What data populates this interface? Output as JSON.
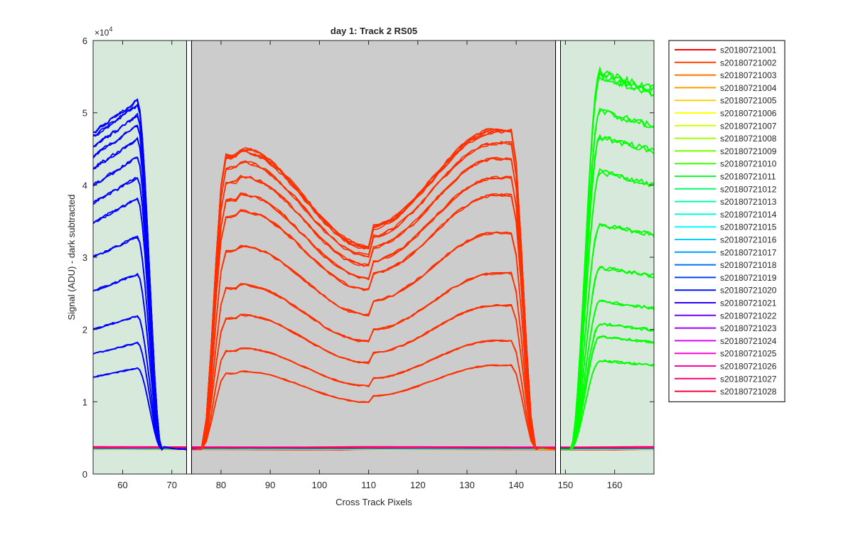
{
  "chart_data": {
    "type": "line",
    "title": "day 1: Track 2  RS05",
    "xlabel": "Cross Track Pixels",
    "ylabel": "Signal (ADU) - dark subtracted",
    "y_exponent_label": "×10",
    "y_exponent_power": "4",
    "xlim": [
      54,
      168
    ],
    "ylim": [
      0,
      60000
    ],
    "x_ticks": [
      60,
      70,
      80,
      90,
      100,
      110,
      120,
      130,
      140,
      150,
      160
    ],
    "x_tick_labels": [
      "60",
      "70",
      "80",
      "90",
      "100",
      "110",
      "120",
      "130",
      "140",
      "150",
      "160"
    ],
    "y_ticks": [
      0,
      10000,
      20000,
      30000,
      40000,
      50000,
      60000
    ],
    "y_tick_labels": [
      "0",
      "1",
      "2",
      "3",
      "4",
      "5",
      "6"
    ],
    "grid": false,
    "legend_position": "outside-right",
    "regions": [
      {
        "name": "left-edge-region",
        "x": [
          54,
          73
        ],
        "color": "#d6e9da"
      },
      {
        "name": "center-region",
        "x": [
          74,
          148
        ],
        "color": "#cccccc"
      },
      {
        "name": "right-edge-region",
        "x": [
          149,
          168
        ],
        "color": "#d6e9da"
      }
    ],
    "divider_x": [
      73,
      74,
      148,
      149
    ],
    "baseline": 3400,
    "levels": {
      "left": [
        47200,
        46700,
        45300,
        44000,
        42300,
        40000,
        37500,
        34800,
        30000,
        25300,
        20000,
        16600,
        13400
      ],
      "center": [
        45000,
        44700,
        43200,
        41200,
        38700,
        36400,
        31500,
        26200,
        22000,
        17400,
        14200
      ],
      "right": [
        53500,
        52900,
        48300,
        44900,
        40200,
        33200,
        27500,
        23000,
        20000,
        18300,
        15100
      ]
    },
    "series": [
      {
        "name": "s20180721001",
        "color": "#ff0000"
      },
      {
        "name": "s20180721002",
        "color": "#ff4000"
      },
      {
        "name": "s20180721003",
        "color": "#ff7000"
      },
      {
        "name": "s20180721004",
        "color": "#ffa000"
      },
      {
        "name": "s20180721005",
        "color": "#ffd000"
      },
      {
        "name": "s20180721006",
        "color": "#ffff00"
      },
      {
        "name": "s20180721007",
        "color": "#d0ff00"
      },
      {
        "name": "s20180721008",
        "color": "#a0ff00"
      },
      {
        "name": "s20180721009",
        "color": "#70ff00"
      },
      {
        "name": "s20180721010",
        "color": "#40ff00"
      },
      {
        "name": "s20180721011",
        "color": "#10ff30"
      },
      {
        "name": "s20180721012",
        "color": "#00ff70"
      },
      {
        "name": "s20180721013",
        "color": "#00ffa0"
      },
      {
        "name": "s20180721014",
        "color": "#00ffd0"
      },
      {
        "name": "s20180721015",
        "color": "#00ffff"
      },
      {
        "name": "s20180721016",
        "color": "#00d0ff"
      },
      {
        "name": "s20180721017",
        "color": "#00a0ff"
      },
      {
        "name": "s20180721018",
        "color": "#0070ff"
      },
      {
        "name": "s20180721019",
        "color": "#0040ff"
      },
      {
        "name": "s20180721020",
        "color": "#0010ff"
      },
      {
        "name": "s20180721021",
        "color": "#3000ff"
      },
      {
        "name": "s20180721022",
        "color": "#7000ff"
      },
      {
        "name": "s20180721023",
        "color": "#a000ff"
      },
      {
        "name": "s20180721024",
        "color": "#e000ff"
      },
      {
        "name": "s20180721025",
        "color": "#ff00d0"
      },
      {
        "name": "s20180721026",
        "color": "#ff00a0"
      },
      {
        "name": "s20180721027",
        "color": "#ff0070"
      },
      {
        "name": "s20180721028",
        "color": "#ff0040"
      }
    ],
    "curve_colors": {
      "left": "#0000ff",
      "center": "#ff3000",
      "right": "#00ff00",
      "baseline": "#ff0040"
    }
  }
}
